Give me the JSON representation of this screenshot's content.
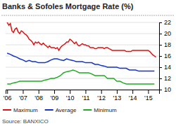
{
  "chart_data": {
    "type": "line",
    "title": "Banks & Sofoles Mortgage Rate (%)",
    "source": "Source: BANXICO",
    "xlim": [
      2005.9,
      2015.7
    ],
    "xticks": [
      {
        "value": 2006,
        "label": "'06"
      },
      {
        "value": 2007,
        "label": "'07"
      },
      {
        "value": 2008,
        "label": "'08"
      },
      {
        "value": 2009,
        "label": "'09"
      },
      {
        "value": 2010,
        "label": "'10"
      },
      {
        "value": 2011,
        "label": "'11"
      },
      {
        "value": 2012,
        "label": "'12"
      },
      {
        "value": 2013,
        "label": "'13"
      },
      {
        "value": 2014,
        "label": "'14"
      },
      {
        "value": 2015,
        "label": "'15"
      }
    ],
    "ylim": [
      10,
      22
    ],
    "yticks": [
      10,
      12,
      14,
      16,
      18,
      20,
      22
    ],
    "grid": true,
    "legend": "bottom",
    "series": [
      {
        "name": "Maximum",
        "color": "#dd1111",
        "x": [
          2006.0,
          2006.1,
          2006.2,
          2006.3,
          2006.4,
          2006.5,
          2006.6,
          2006.7,
          2006.8,
          2006.9,
          2007.0,
          2007.1,
          2007.2,
          2007.3,
          2007.4,
          2007.5,
          2007.6,
          2007.7,
          2007.8,
          2007.9,
          2008.0,
          2008.1,
          2008.2,
          2008.3,
          2008.4,
          2008.5,
          2008.6,
          2008.7,
          2008.8,
          2008.9,
          2009.0,
          2009.1,
          2009.2,
          2009.3,
          2009.4,
          2009.5,
          2009.6,
          2009.7,
          2009.8,
          2009.9,
          2010.0,
          2010.1,
          2010.2,
          2010.3,
          2010.4,
          2010.5,
          2010.6,
          2010.7,
          2010.8,
          2010.9,
          2011.0,
          2011.1,
          2011.2,
          2011.3,
          2011.4,
          2011.5,
          2011.6,
          2011.7,
          2011.8,
          2011.9,
          2012.0,
          2012.1,
          2012.2,
          2012.3,
          2012.4,
          2012.5,
          2012.6,
          2012.7,
          2012.8,
          2012.9,
          2013.0,
          2013.1,
          2013.2,
          2013.3,
          2013.4,
          2013.5,
          2013.6,
          2013.7,
          2013.8,
          2013.9,
          2014.0,
          2014.1,
          2014.2,
          2014.3,
          2014.4,
          2014.5,
          2014.6,
          2014.7,
          2014.8,
          2014.9,
          2015.0,
          2015.1,
          2015.2,
          2015.3,
          2015.4,
          2015.5
        ],
        "values": [
          22,
          21.5,
          21.8,
          20.5,
          20.2,
          20.8,
          21.0,
          20.3,
          20.0,
          20.5,
          20.3,
          20.0,
          19.8,
          19.5,
          19.0,
          18.8,
          18.5,
          18.0,
          18.5,
          18.3,
          18.5,
          18.2,
          18.0,
          18.3,
          18.0,
          17.8,
          17.5,
          17.8,
          17.5,
          17.5,
          17.5,
          17.3,
          17.5,
          17.0,
          17.5,
          17.8,
          18.0,
          18.2,
          18.5,
          18.5,
          19.0,
          18.8,
          18.5,
          18.2,
          18.5,
          18.0,
          17.8,
          18.0,
          18.2,
          18.0,
          18.0,
          17.8,
          17.8,
          17.5,
          17.5,
          17.5,
          17.3,
          17.3,
          17.5,
          17.5,
          17.5,
          17.5,
          17.3,
          17.5,
          17.5,
          17.3,
          17.2,
          17.0,
          17.0,
          17.0,
          17.0,
          17.0,
          17.0,
          17.0,
          17.0,
          17.0,
          16.8,
          16.8,
          16.8,
          16.8,
          17.0,
          17.0,
          17.0,
          17.0,
          17.0,
          17.0,
          17.0,
          17.0,
          17.0,
          17.0,
          17.0,
          16.8,
          16.5,
          16.2,
          16.0,
          15.8
        ]
      },
      {
        "name": "Average",
        "color": "#1133cc",
        "x": [
          2006.0,
          2006.2,
          2006.4,
          2006.6,
          2006.8,
          2007.0,
          2007.2,
          2007.4,
          2007.6,
          2007.8,
          2008.0,
          2008.2,
          2008.4,
          2008.6,
          2008.8,
          2009.0,
          2009.2,
          2009.4,
          2009.6,
          2009.8,
          2010.0,
          2010.2,
          2010.4,
          2010.6,
          2010.8,
          2011.0,
          2011.2,
          2011.4,
          2011.6,
          2011.8,
          2012.0,
          2012.2,
          2012.4,
          2012.6,
          2012.8,
          2013.0,
          2013.2,
          2013.4,
          2013.6,
          2013.8,
          2014.0,
          2014.2,
          2014.4,
          2014.6,
          2014.8,
          2015.0,
          2015.2,
          2015.4
        ],
        "values": [
          16.5,
          16.3,
          16.0,
          15.8,
          15.5,
          15.3,
          15.0,
          15.2,
          15.0,
          15.0,
          14.8,
          14.8,
          14.8,
          15.0,
          15.3,
          15.5,
          15.5,
          15.3,
          15.2,
          15.5,
          15.3,
          15.2,
          15.0,
          15.0,
          15.0,
          14.8,
          14.8,
          14.8,
          14.5,
          14.5,
          14.3,
          14.2,
          14.0,
          14.0,
          14.0,
          14.0,
          13.8,
          13.8,
          13.8,
          13.5,
          13.5,
          13.5,
          13.3,
          13.3,
          13.3,
          13.3,
          13.3,
          13.3
        ]
      },
      {
        "name": "Minimum",
        "color": "#22aa22",
        "x": [
          2006.0,
          2006.2,
          2006.4,
          2006.6,
          2006.8,
          2007.0,
          2007.2,
          2007.4,
          2007.6,
          2007.8,
          2008.0,
          2008.2,
          2008.4,
          2008.6,
          2008.8,
          2009.0,
          2009.2,
          2009.4,
          2009.6,
          2009.8,
          2010.0,
          2010.2,
          2010.4,
          2010.6,
          2010.8,
          2011.0,
          2011.2,
          2011.4,
          2011.6,
          2011.8,
          2012.0,
          2012.2,
          2012.4,
          2012.6,
          2012.8,
          2013.0,
          2013.2,
          2013.4,
          2013.6,
          2013.8,
          2014.0,
          2014.2,
          2014.4,
          2014.6,
          2014.8,
          2015.0,
          2015.2,
          2015.4
        ],
        "values": [
          11.0,
          11.0,
          11.2,
          11.3,
          11.5,
          11.5,
          11.5,
          11.5,
          11.5,
          11.5,
          11.5,
          11.5,
          11.7,
          11.8,
          12.0,
          12.0,
          12.2,
          12.5,
          13.0,
          13.2,
          13.3,
          13.5,
          13.3,
          13.0,
          13.0,
          13.0,
          13.0,
          12.8,
          12.5,
          12.5,
          12.5,
          12.5,
          12.0,
          12.0,
          12.0,
          11.5,
          11.5,
          11.2,
          11.0,
          11.0,
          11.0,
          11.0,
          11.0,
          11.0,
          11.0,
          11.0,
          11.0,
          11.0
        ]
      }
    ]
  }
}
